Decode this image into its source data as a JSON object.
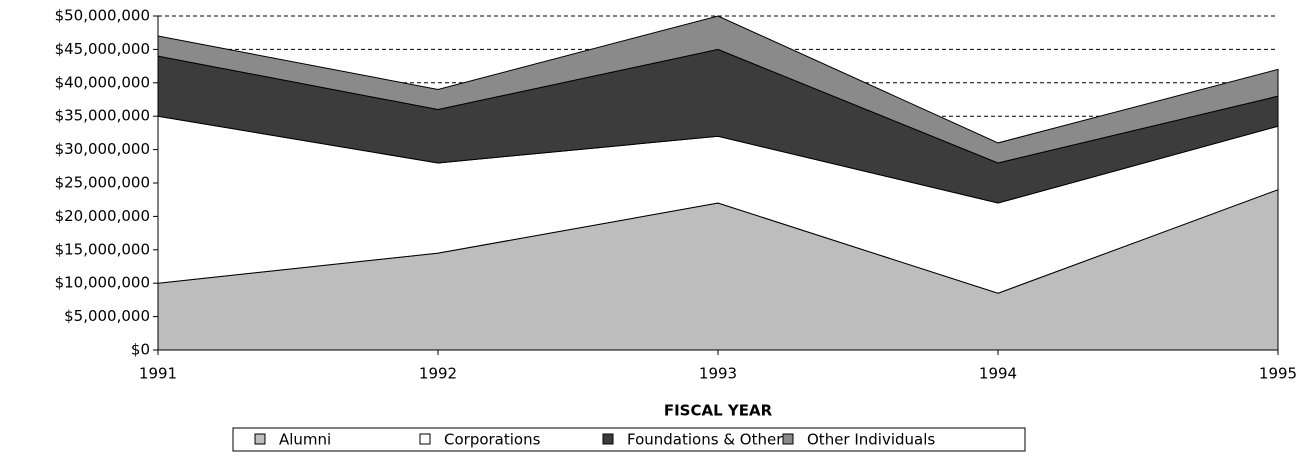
{
  "chart_data": {
    "type": "stacked_area",
    "x_axis_title": "FISCAL YEAR",
    "categories": [
      "1991",
      "1992",
      "1993",
      "1994",
      "1995"
    ],
    "series": [
      {
        "name": "Alumni",
        "color": "#bdbdbd",
        "values": [
          10000000,
          14500000,
          22000000,
          8500000,
          24000000
        ]
      },
      {
        "name": "Corporations",
        "color": "#ffffff",
        "values": [
          25000000,
          13500000,
          10000000,
          13500000,
          9500000
        ]
      },
      {
        "name": "Foundations & Other",
        "color": "#3c3c3c",
        "values": [
          9000000,
          8000000,
          13000000,
          6000000,
          4500000
        ]
      },
      {
        "name": "Other Individuals",
        "color": "#8a8a8a",
        "values": [
          3000000,
          3000000,
          5000000,
          3000000,
          4000000
        ]
      }
    ],
    "ylim": [
      0,
      50000000
    ],
    "yticks": [
      {
        "value": 0,
        "label": "$0"
      },
      {
        "value": 5000000,
        "label": "$5,000,000"
      },
      {
        "value": 10000000,
        "label": "$10,000,000"
      },
      {
        "value": 15000000,
        "label": "$15,000,000"
      },
      {
        "value": 20000000,
        "label": "$20,000,000"
      },
      {
        "value": 25000000,
        "label": "$25,000,000"
      },
      {
        "value": 30000000,
        "label": "$30,000,000"
      },
      {
        "value": 35000000,
        "label": "$35,000,000"
      },
      {
        "value": 40000000,
        "label": "$40,000,000"
      },
      {
        "value": 45000000,
        "label": "$45,000,000"
      },
      {
        "value": 50000000,
        "label": "$50,000,000"
      }
    ],
    "grid": true
  }
}
